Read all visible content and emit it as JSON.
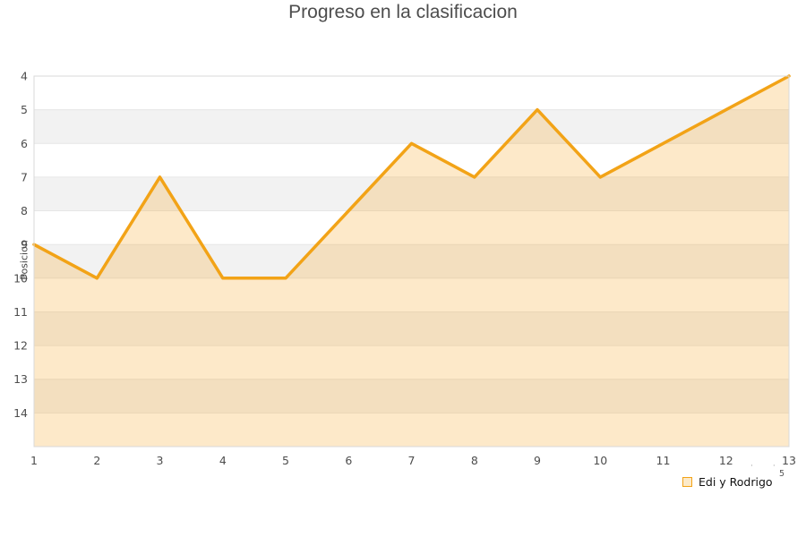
{
  "title": "Progreso en la clasificacion",
  "legend": {
    "label": "Edi y Rodrigo"
  },
  "annotation": {
    "dots": "··",
    "superscript": "5"
  },
  "chart_data": {
    "type": "area",
    "title": "Progreso en la clasificacion",
    "xlabel": "",
    "ylabel": "Posicion",
    "x": [
      1,
      2,
      3,
      4,
      5,
      6,
      7,
      8,
      9,
      10,
      11,
      12,
      13
    ],
    "series": [
      {
        "name": "Edi y Rodrigo",
        "values": [
          9,
          10,
          7,
          10,
          10,
          8,
          6,
          7,
          5,
          7,
          6,
          5,
          4
        ]
      }
    ],
    "x_ticks": [
      1,
      2,
      3,
      4,
      5,
      6,
      7,
      8,
      9,
      10,
      11,
      12,
      13
    ],
    "y_ticks": [
      4,
      5,
      6,
      7,
      8,
      9,
      10,
      11,
      12,
      13,
      14
    ],
    "ylim_top": 4,
    "ylim_bottom": 15,
    "y_axis_inverted": true,
    "grid": true,
    "legend_position": "bottom-right",
    "line_color": "#f2a317",
    "fill_color": "rgba(245,164,29,0.24)",
    "band_colors": [
      "#ffffff",
      "#f2f2f2"
    ],
    "gridline_color": "#e6e6e6",
    "border_color": "#d9d9d9",
    "tick_label_color": "#4d4d4d"
  }
}
